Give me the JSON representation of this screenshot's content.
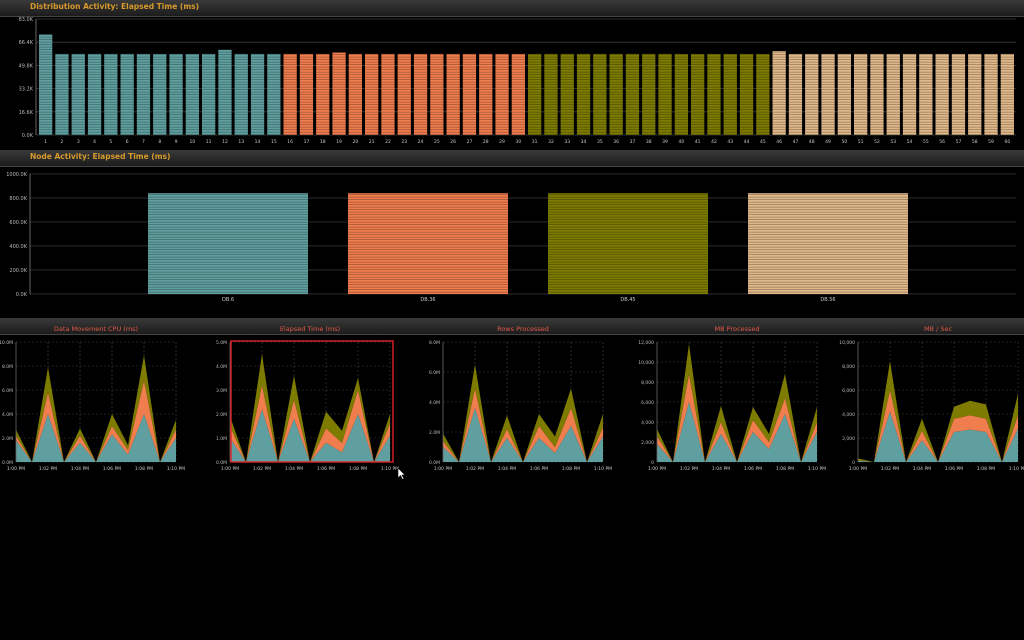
{
  "panels": {
    "distribution_title": "Distribution Activity: Elapsed Time (ms)",
    "node_title": "Node Activity: Elapsed Time (ms)"
  },
  "colors": {
    "teal": "#5f9fa0",
    "orange": "#f07d4e",
    "olive": "#7d7b00",
    "tan": "#e0b88a",
    "title_orange": "#d79a2b",
    "chart_title_red": "#e05a4a",
    "highlight": "#e0232a"
  },
  "chart_data": [
    {
      "id": "distribution",
      "type": "bar",
      "title": "Distribution Activity: Elapsed Time (ms)",
      "yticks": [
        "0.0K",
        "16.6K",
        "33.2K",
        "49.8K",
        "66.4K",
        "83.0K"
      ],
      "ylim": [
        0,
        83
      ],
      "categories": [
        "1",
        "2",
        "3",
        "4",
        "5",
        "6",
        "7",
        "8",
        "9",
        "10",
        "11",
        "12",
        "13",
        "14",
        "15",
        "16",
        "17",
        "18",
        "19",
        "20",
        "21",
        "22",
        "23",
        "24",
        "25",
        "26",
        "27",
        "28",
        "29",
        "30",
        "31",
        "32",
        "33",
        "34",
        "35",
        "36",
        "37",
        "38",
        "39",
        "40",
        "41",
        "42",
        "43",
        "44",
        "45",
        "46",
        "47",
        "48",
        "49",
        "50",
        "51",
        "52",
        "53",
        "54",
        "55",
        "56",
        "57",
        "58",
        "59",
        "60"
      ],
      "values": [
        72,
        58,
        58,
        58,
        58,
        58,
        58,
        58,
        58,
        58,
        58,
        61,
        58,
        58,
        58,
        58,
        58,
        58,
        59,
        58,
        58,
        58,
        58,
        58,
        58,
        58,
        58,
        58,
        58,
        58,
        58,
        58,
        58,
        58,
        58,
        58,
        58,
        58,
        58,
        58,
        58,
        58,
        58,
        58,
        58,
        60,
        58,
        58,
        58,
        58,
        58,
        58,
        58,
        58,
        58,
        58,
        58,
        58,
        58,
        58
      ],
      "node_colors": [
        "teal",
        "orange",
        "olive",
        "tan"
      ]
    },
    {
      "id": "node",
      "type": "bar",
      "title": "Node Activity: Elapsed Time (ms)",
      "yticks": [
        "0.0K",
        "200.0K",
        "400.0K",
        "600.0K",
        "800.0K",
        "1000.0K"
      ],
      "ylim": [
        0,
        1000
      ],
      "categories": [
        "DB.6",
        "DB.36",
        "DB.45",
        "DB.56"
      ],
      "values": [
        840,
        840,
        840,
        840
      ]
    },
    {
      "id": "data-movement-cpu",
      "type": "area",
      "title": "Data Movement CPU (ms)",
      "yticks": [
        "0.0M",
        "2.0M",
        "4.0M",
        "6.0M",
        "8.0M",
        "10.0M"
      ],
      "ylim": [
        0,
        10
      ],
      "xticks": [
        "1:00 PM",
        "1:02 PM",
        "1:04 PM",
        "1:06 PM",
        "1:08 PM",
        "1:10 PM"
      ],
      "series": [
        {
          "color": "teal",
          "values": [
            1.8,
            0,
            4.0,
            0,
            1.6,
            0,
            2.3,
            0.6,
            4.0,
            0,
            2.0
          ]
        },
        {
          "color": "orange",
          "values": [
            0.4,
            0,
            1.8,
            0,
            0.6,
            0,
            0.7,
            0.4,
            2.8,
            0,
            0.7
          ]
        },
        {
          "color": "olive",
          "values": [
            0.5,
            0,
            2.1,
            0,
            0.6,
            0,
            1.0,
            0.4,
            2.1,
            0,
            0.8
          ]
        }
      ]
    },
    {
      "id": "elapsed-time",
      "type": "area",
      "title": "Elapsed Time (ms)",
      "yticks": [
        "0.0M",
        "1.0M",
        "2.0M",
        "3.0M",
        "4.0M",
        "5.0M"
      ],
      "ylim": [
        0,
        5
      ],
      "xticks": [
        "1:00 PM",
        "1:02 PM",
        "1:04 PM",
        "1:06 PM",
        "1:08 PM",
        "1:10 PM"
      ],
      "highlighted": true,
      "series": [
        {
          "color": "teal",
          "values": [
            1.0,
            0,
            2.2,
            0,
            1.8,
            0,
            0.8,
            0.4,
            2.0,
            0,
            1.1
          ]
        },
        {
          "color": "orange",
          "values": [
            0.5,
            0,
            1.0,
            0,
            0.8,
            0,
            0.6,
            0.4,
            1.0,
            0,
            0.5
          ]
        },
        {
          "color": "olive",
          "values": [
            0.4,
            0,
            1.3,
            0,
            1.0,
            0,
            0.7,
            0.5,
            0.5,
            0,
            0.4
          ]
        }
      ]
    },
    {
      "id": "rows-processed",
      "type": "area",
      "title": "Rows Processed",
      "yticks": [
        "0.0M",
        "2.0M",
        "4.0M",
        "6.0M",
        "8.0M"
      ],
      "ylim": [
        0,
        8
      ],
      "xticks": [
        "1:00 PM",
        "1:02 PM",
        "1:04 PM",
        "1:06 PM",
        "1:08 PM",
        "1:10 PM"
      ],
      "series": [
        {
          "color": "teal",
          "values": [
            1.0,
            0,
            3.6,
            0,
            1.6,
            0,
            1.6,
            0.6,
            2.4,
            0,
            1.7
          ]
        },
        {
          "color": "orange",
          "values": [
            0.4,
            0,
            1.3,
            0,
            0.6,
            0,
            0.8,
            0.4,
            1.2,
            0,
            0.6
          ]
        },
        {
          "color": "olive",
          "values": [
            0.5,
            0,
            1.6,
            0,
            0.9,
            0,
            0.8,
            0.7,
            1.3,
            0,
            0.9
          ]
        }
      ]
    },
    {
      "id": "mb-processed",
      "type": "area",
      "title": "MB Processed",
      "yticks": [
        "0",
        "2,000",
        "4,000",
        "6,000",
        "8,000",
        "10,000",
        "12,000"
      ],
      "ylim": [
        0,
        12000
      ],
      "xticks": [
        "1:00 PM",
        "1:02 PM",
        "1:04 PM",
        "1:06 PM",
        "1:08 PM",
        "1:10 PM"
      ],
      "series": [
        {
          "color": "teal",
          "values": [
            1800,
            0,
            6000,
            0,
            2800,
            0,
            3000,
            1300,
            4800,
            0,
            3000
          ]
        },
        {
          "color": "orange",
          "values": [
            800,
            0,
            2800,
            0,
            1200,
            0,
            1200,
            700,
            1600,
            0,
            1000
          ]
        },
        {
          "color": "olive",
          "values": [
            700,
            0,
            3000,
            0,
            1600,
            0,
            1300,
            800,
            2400,
            0,
            1500
          ]
        }
      ]
    },
    {
      "id": "mb-per-sec",
      "type": "area",
      "title": "MB / Sec",
      "yticks": [
        "0",
        "2,000",
        "4,000",
        "6,000",
        "8,000",
        "10,000"
      ],
      "ylim": [
        0,
        10000
      ],
      "xticks": [
        "1:00 PM",
        "1:02 PM",
        "1:04 PM",
        "1:06 PM",
        "1:08 PM",
        "1:10 PM"
      ],
      "series": [
        {
          "color": "teal",
          "values": [
            100,
            0,
            4200,
            0,
            1800,
            0,
            2500,
            2700,
            2500,
            0,
            2800
          ]
        },
        {
          "color": "orange",
          "values": [
            50,
            0,
            1800,
            0,
            800,
            0,
            1100,
            1200,
            1100,
            0,
            1100
          ]
        },
        {
          "color": "olive",
          "values": [
            150,
            0,
            2400,
            0,
            1000,
            0,
            1000,
            1200,
            1200,
            0,
            1800
          ]
        }
      ]
    }
  ]
}
